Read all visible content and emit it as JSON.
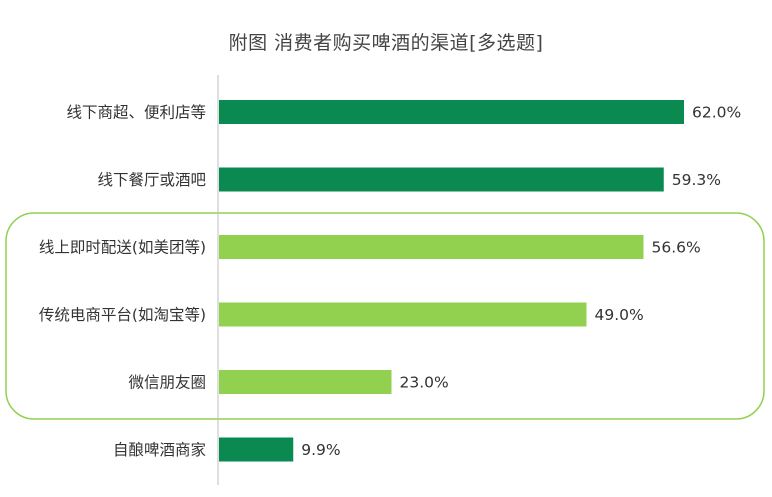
{
  "chart_data": {
    "type": "bar",
    "orientation": "horizontal",
    "title": "附图 消费者购买啤酒的渠道[多选题]",
    "categories": [
      "线下商超、便利店等",
      "线下餐厅或酒吧",
      "线上即时配送(如美团等)",
      "传统电商平台(如淘宝等)",
      "微信朋友圈",
      "自酿啤酒商家"
    ],
    "values": [
      62.0,
      59.3,
      56.6,
      49.0,
      23.0,
      9.9
    ],
    "value_labels": [
      "62.0%",
      "59.3%",
      "56.6%",
      "49.0%",
      "23.0%",
      "9.9%"
    ],
    "bar_colors": [
      "#0a8a50",
      "#0a8a50",
      "#92d050",
      "#92d050",
      "#92d050",
      "#0a8a50"
    ],
    "highlight_group": {
      "categories": [
        "线上即时配送(如美团等)",
        "传统电商平台(如淘宝等)",
        "微信朋友圈"
      ],
      "color": "#92d050"
    },
    "xlim": [
      0,
      70
    ],
    "grid": false,
    "xlabel": "",
    "ylabel": ""
  }
}
